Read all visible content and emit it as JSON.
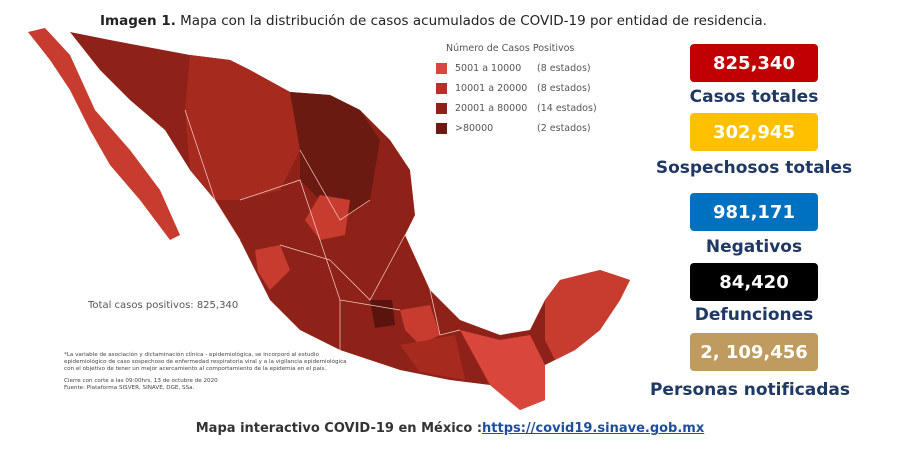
{
  "header": {
    "label": "Imagen 1.",
    "caption": "Mapa con la distribución de casos acumulados de COVID-19 por entidad de residencia."
  },
  "legend": {
    "title": "Número de Casos Positivos",
    "items": [
      {
        "range": "5001 a  10000",
        "count": "(8 estados)",
        "color": "#d9463b"
      },
      {
        "range": "10001 a  20000",
        "count": "(8 estados)",
        "color": "#b8302a"
      },
      {
        "range": "20001 a  80000",
        "count": "(14 estados)",
        "color": "#8f2218"
      },
      {
        "range": ">80000",
        "count": "(2 estados)",
        "color": "#6b1a12"
      }
    ]
  },
  "map_total": "Total casos positivos: 825,340",
  "notes": [
    "*La variable de asociación y dictaminación clínica - epidemiológica, se incorporó al estudio",
    "epidemiológico de caso sospechoso de enfermedad respiratoria viral y a la vigilancia epidemiológica",
    "con el objetivo de tener un mejor acercamiento al comportamiento de la epidemia en el país.",
    "Cierre con corte a las 09:00hrs, 13 de octubre de 2020",
    "Fuente: Plataforma SISVER, SINAVE, DGE, SSa."
  ],
  "stats": [
    {
      "value": "825,340",
      "label": "Casos totales",
      "color": "#c00000"
    },
    {
      "value": "302,945",
      "label": "Sospechosos totales",
      "color": "#ffc000"
    },
    {
      "value": "981,171",
      "label": "Negativos",
      "color": "#0070c0"
    },
    {
      "value": "84,420",
      "label": "Defunciones",
      "color": "#000000"
    },
    {
      "value": "2, 109,456",
      "label": "Personas notificadas",
      "color": "#bf9b60"
    }
  ],
  "footer": {
    "text": "Mapa interactivo COVID-19 en México :",
    "link": "https://covid19.sinave.gob.mx"
  }
}
